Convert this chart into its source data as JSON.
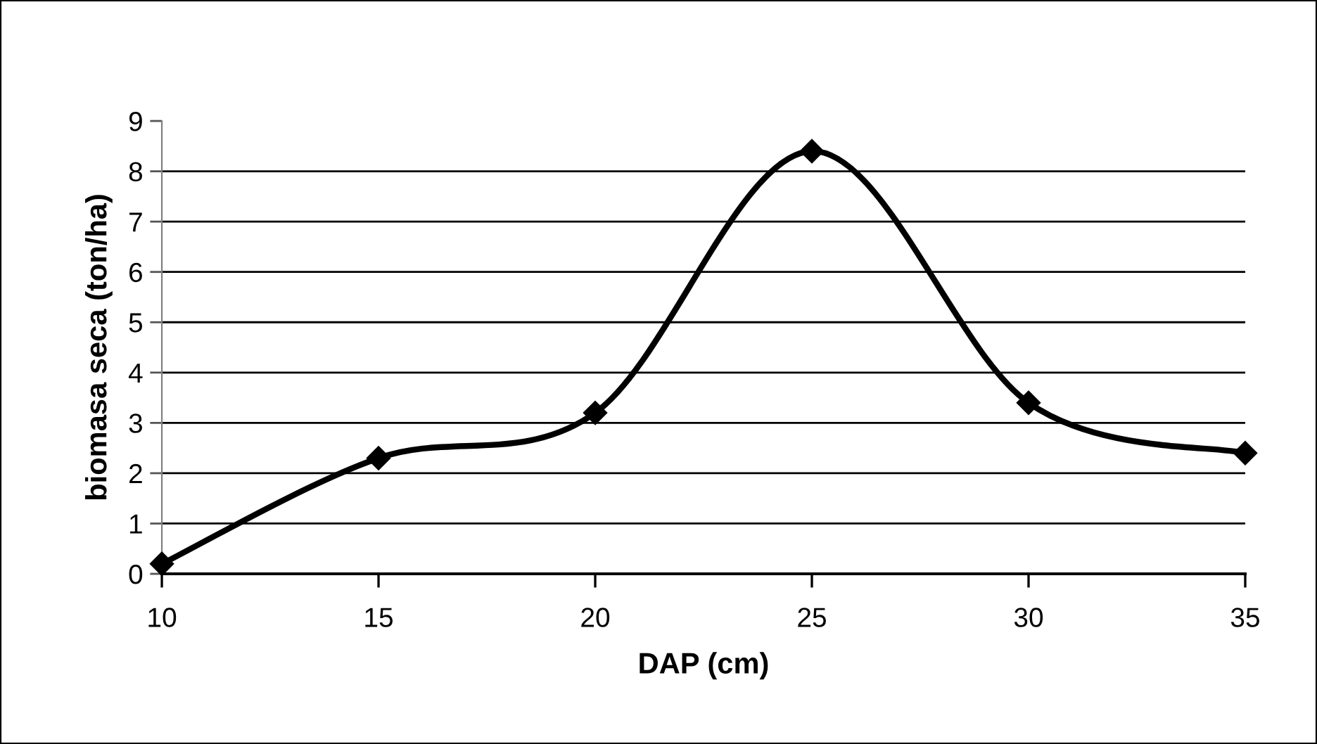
{
  "chart_data": {
    "type": "line",
    "xlabel": "DAP (cm)",
    "ylabel": "biomasa seca (ton/ha)",
    "x": [
      10,
      15,
      20,
      25,
      30,
      35
    ],
    "series": [
      {
        "color": "#000000",
        "values": [
          0.2,
          2.3,
          3.2,
          8.4,
          3.4,
          2.4
        ]
      }
    ],
    "xlim": [
      10,
      35
    ],
    "xticks": [
      10,
      15,
      20,
      25,
      30,
      35
    ],
    "ylim": [
      0,
      9
    ],
    "yticks": [
      0,
      1,
      2,
      3,
      4,
      5,
      6,
      7,
      8,
      9
    ],
    "grid": "y",
    "marker": "diamond",
    "line_style": "solid",
    "legend": false
  }
}
